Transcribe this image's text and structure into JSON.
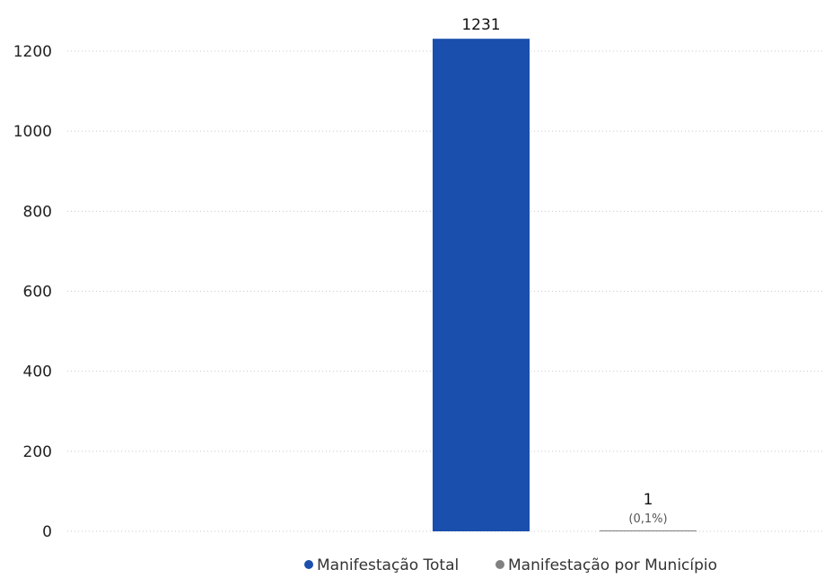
{
  "chart_data": {
    "type": "bar",
    "title": "",
    "xlabel": "",
    "ylabel": "",
    "ylim": [
      0,
      1300
    ],
    "yticks": [
      0,
      200,
      400,
      600,
      800,
      1000,
      1200
    ],
    "grid": true,
    "legend_position": "bottom-right",
    "series": [
      {
        "name": "Manifestação Total",
        "values": [
          1231
        ],
        "label": "1231",
        "color": "#1a4fad"
      },
      {
        "name": "Manifestação por Município",
        "values": [
          1
        ],
        "label": "1",
        "sublabel": "(0,1%)",
        "color": "#808080"
      }
    ]
  }
}
